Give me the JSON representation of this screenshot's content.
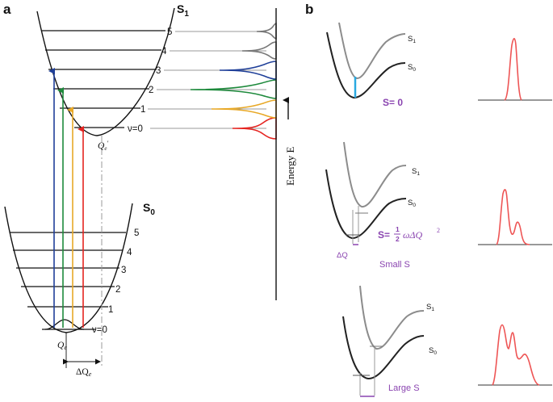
{
  "panel_a": {
    "label": "a",
    "excited_state": {
      "label_main": "S",
      "label_sub": "1"
    },
    "ground_state": {
      "label_main": "S",
      "label_sub": "0"
    },
    "excited_levels": [
      "ν=0",
      "1",
      "2",
      "3",
      "4",
      "5"
    ],
    "ground_levels": [
      "ν=0",
      "1",
      "2",
      "3",
      "4",
      "5"
    ],
    "qe_label": "Q",
    "qe_sub": "e",
    "qe_prime_label": "Q",
    "qe_prime_sub": "e",
    "qe_prime_mark": "′",
    "delta_q_label": "ΔQ",
    "delta_q_sub": "e",
    "energy_axis_label": "Energy E",
    "transition_colors": [
      "#1f3f99",
      "#1e8a3c",
      "#e8a826",
      "#e52420"
    ],
    "spectrum_colors": [
      "#e52420",
      "#e8a826",
      "#1e8a3c",
      "#1f3f99",
      "#777777",
      "#777777"
    ]
  },
  "panel_b": {
    "label": "b",
    "rows": [
      {
        "s1_label": "S",
        "s1_sub": "1",
        "s0_label": "S",
        "s0_sub": "0",
        "s_expr": "S= 0",
        "caption": ""
      },
      {
        "s1_label": "S",
        "s1_sub": "1",
        "s0_label": "S",
        "s0_sub": "0",
        "s_expr_prefix": "S=",
        "frac_num": "1",
        "frac_den": "2",
        "s_expr_suffix": "ωΔQ",
        "s_expr_sup": "2",
        "delta_label": "ΔQ",
        "caption": "Small S"
      },
      {
        "s1_label": "S",
        "s1_sub": "1",
        "s0_label": "S",
        "s0_sub": "0",
        "caption": "Large S"
      }
    ],
    "curve_colors": {
      "s1": "#8c8c8c",
      "s0": "#222222",
      "zero_phonon": "#29a9e0",
      "spectrum": "#ee5555",
      "label": "#8a44b0"
    }
  }
}
